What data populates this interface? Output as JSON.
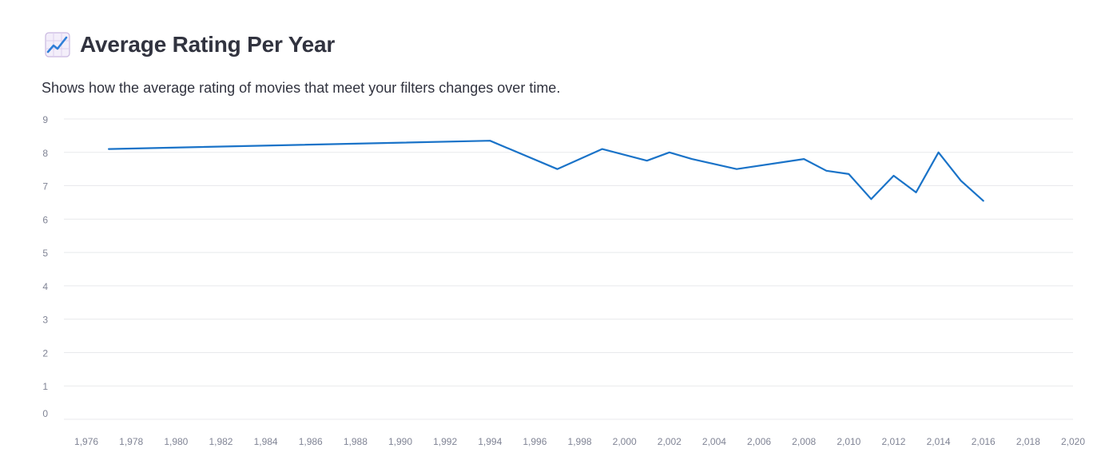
{
  "header": {
    "title": "Average Rating Per Year",
    "icon": "chart-increasing-icon"
  },
  "description": "Shows how the average rating of movies that meet your filters changes over time.",
  "colors": {
    "line": "#1a73c8",
    "grid": "#e8e9ec",
    "tick_text": "#808495",
    "text": "#31333f"
  },
  "chart_data": {
    "type": "line",
    "title": "",
    "xlabel": "",
    "ylabel": "",
    "grid": true,
    "xlim": [
      1975,
      2020
    ],
    "ylim": [
      0,
      9
    ],
    "x_ticks": [
      1976,
      1978,
      1980,
      1982,
      1984,
      1986,
      1988,
      1990,
      1992,
      1994,
      1996,
      1998,
      2000,
      2002,
      2004,
      2006,
      2008,
      2010,
      2012,
      2014,
      2016,
      2018,
      2020
    ],
    "x_tick_labels": [
      "1,976",
      "1,978",
      "1,980",
      "1,982",
      "1,984",
      "1,986",
      "1,988",
      "1,990",
      "1,992",
      "1,994",
      "1,996",
      "1,998",
      "2,000",
      "2,002",
      "2,004",
      "2,006",
      "2,008",
      "2,010",
      "2,012",
      "2,014",
      "2,016",
      "2,018",
      "2,020"
    ],
    "y_ticks": [
      0,
      1,
      2,
      3,
      4,
      5,
      6,
      7,
      8,
      9
    ],
    "y_tick_labels": [
      "0",
      "1",
      "2",
      "3",
      "4",
      "5",
      "6",
      "7",
      "8",
      "9"
    ],
    "series": [
      {
        "x": [
          1977,
          1994,
          1997,
          1999,
          2001,
          2002,
          2003,
          2005,
          2008,
          2009,
          2010,
          2011,
          2012,
          2013,
          2014,
          2015,
          2016
        ],
        "y": [
          8.1,
          8.35,
          7.5,
          8.1,
          7.75,
          8.0,
          7.8,
          7.5,
          7.8,
          7.45,
          7.35,
          6.6,
          7.3,
          6.8,
          8.0,
          7.15,
          6.55
        ]
      }
    ]
  }
}
